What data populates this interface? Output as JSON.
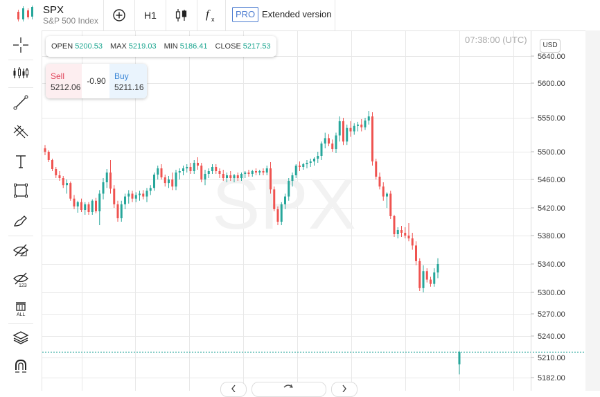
{
  "header": {
    "symbol": "SPX",
    "symbol_name": "S&P 500 Index",
    "timeframe": "H1",
    "pro_label": "PRO",
    "extended_label": "Extended version"
  },
  "colors": {
    "up": "#26a69a",
    "down": "#ef5350",
    "accent": "#4a7bd0",
    "grid": "#e8e8e8",
    "current_price_line": "#26a69a"
  },
  "ohlc": {
    "open_label": "OPEN",
    "open": "5200.53",
    "max_label": "MAX",
    "max": "5219.03",
    "min_label": "MIN",
    "min": "5186.41",
    "close_label": "CLOSE",
    "close": "5217.53"
  },
  "trade": {
    "sell_label": "Sell",
    "sell": "5212.06",
    "spread": "-0.90",
    "buy_label": "Buy",
    "buy": "5211.16"
  },
  "chart_meta": {
    "time": "07:38:00 (UTC)",
    "currency": "USD",
    "watermark": "SPX"
  },
  "toolbar_icons": [
    "plus-circle-icon",
    "candles-icon",
    "function-icon"
  ],
  "left_tools": [
    "crosshair-icon",
    "indicators-icon",
    "trend-line-icon",
    "fib-icon",
    "text-icon",
    "rectangle-icon",
    "brush-icon",
    "hide-drawings-icon",
    "hide-labels-icon",
    "delete-all-icon",
    "layers-icon",
    "magnet-icon"
  ],
  "chart_data": {
    "type": "candlestick",
    "title": "SPX",
    "y_ticks": [
      5640,
      5600,
      5550,
      5500,
      5460,
      5420,
      5380,
      5340,
      5300,
      5270,
      5240,
      5210,
      5182
    ],
    "y_tick_labels": [
      "5640.00",
      "5600.00",
      "5550.00",
      "5500.00",
      "5460.00",
      "5420.00",
      "5380.00",
      "5340.00",
      "5300.00",
      "5270.00",
      "5240.00",
      "5210.00",
      "5182.00"
    ],
    "current_price": 5217.53,
    "candles": [
      {
        "o": 5505,
        "h": 5510,
        "l": 5495,
        "c": 5500
      },
      {
        "o": 5500,
        "h": 5502,
        "l": 5485,
        "c": 5488
      },
      {
        "o": 5488,
        "h": 5490,
        "l": 5472,
        "c": 5475
      },
      {
        "o": 5475,
        "h": 5478,
        "l": 5462,
        "c": 5466
      },
      {
        "o": 5466,
        "h": 5472,
        "l": 5458,
        "c": 5462
      },
      {
        "o": 5462,
        "h": 5465,
        "l": 5448,
        "c": 5452
      },
      {
        "o": 5452,
        "h": 5460,
        "l": 5440,
        "c": 5455
      },
      {
        "o": 5455,
        "h": 5457,
        "l": 5430,
        "c": 5433
      },
      {
        "o": 5433,
        "h": 5438,
        "l": 5418,
        "c": 5422
      },
      {
        "o": 5422,
        "h": 5430,
        "l": 5413,
        "c": 5428
      },
      {
        "o": 5428,
        "h": 5433,
        "l": 5414,
        "c": 5417
      },
      {
        "o": 5417,
        "h": 5428,
        "l": 5410,
        "c": 5425
      },
      {
        "o": 5425,
        "h": 5428,
        "l": 5410,
        "c": 5414
      },
      {
        "o": 5414,
        "h": 5432,
        "l": 5410,
        "c": 5430
      },
      {
        "o": 5430,
        "h": 5434,
        "l": 5412,
        "c": 5415
      },
      {
        "o": 5415,
        "h": 5445,
        "l": 5395,
        "c": 5440
      },
      {
        "o": 5440,
        "h": 5462,
        "l": 5432,
        "c": 5456
      },
      {
        "o": 5456,
        "h": 5475,
        "l": 5448,
        "c": 5470
      },
      {
        "o": 5470,
        "h": 5488,
        "l": 5440,
        "c": 5447
      },
      {
        "o": 5447,
        "h": 5452,
        "l": 5420,
        "c": 5425
      },
      {
        "o": 5425,
        "h": 5430,
        "l": 5400,
        "c": 5405
      },
      {
        "o": 5405,
        "h": 5430,
        "l": 5400,
        "c": 5425
      },
      {
        "o": 5425,
        "h": 5440,
        "l": 5418,
        "c": 5436
      },
      {
        "o": 5436,
        "h": 5445,
        "l": 5426,
        "c": 5440
      },
      {
        "o": 5440,
        "h": 5444,
        "l": 5428,
        "c": 5433
      },
      {
        "o": 5433,
        "h": 5442,
        "l": 5428,
        "c": 5438
      },
      {
        "o": 5438,
        "h": 5444,
        "l": 5430,
        "c": 5440
      },
      {
        "o": 5440,
        "h": 5445,
        "l": 5432,
        "c": 5436
      },
      {
        "o": 5436,
        "h": 5448,
        "l": 5428,
        "c": 5444
      },
      {
        "o": 5444,
        "h": 5452,
        "l": 5438,
        "c": 5448
      },
      {
        "o": 5448,
        "h": 5470,
        "l": 5444,
        "c": 5467
      },
      {
        "o": 5467,
        "h": 5480,
        "l": 5460,
        "c": 5476
      },
      {
        "o": 5476,
        "h": 5482,
        "l": 5460,
        "c": 5463
      },
      {
        "o": 5463,
        "h": 5467,
        "l": 5450,
        "c": 5455
      },
      {
        "o": 5455,
        "h": 5465,
        "l": 5448,
        "c": 5460
      },
      {
        "o": 5460,
        "h": 5470,
        "l": 5445,
        "c": 5450
      },
      {
        "o": 5450,
        "h": 5474,
        "l": 5445,
        "c": 5470
      },
      {
        "o": 5470,
        "h": 5476,
        "l": 5460,
        "c": 5472
      },
      {
        "o": 5472,
        "h": 5480,
        "l": 5466,
        "c": 5476
      },
      {
        "o": 5476,
        "h": 5482,
        "l": 5470,
        "c": 5478
      },
      {
        "o": 5478,
        "h": 5484,
        "l": 5468,
        "c": 5472
      },
      {
        "o": 5472,
        "h": 5488,
        "l": 5468,
        "c": 5484
      },
      {
        "o": 5484,
        "h": 5492,
        "l": 5474,
        "c": 5480
      },
      {
        "o": 5480,
        "h": 5484,
        "l": 5456,
        "c": 5460
      },
      {
        "o": 5460,
        "h": 5474,
        "l": 5452,
        "c": 5468
      },
      {
        "o": 5468,
        "h": 5476,
        "l": 5462,
        "c": 5472
      },
      {
        "o": 5472,
        "h": 5482,
        "l": 5468,
        "c": 5478
      },
      {
        "o": 5478,
        "h": 5482,
        "l": 5468,
        "c": 5472
      },
      {
        "o": 5472,
        "h": 5476,
        "l": 5462,
        "c": 5468
      },
      {
        "o": 5468,
        "h": 5474,
        "l": 5458,
        "c": 5462
      },
      {
        "o": 5462,
        "h": 5470,
        "l": 5456,
        "c": 5466
      },
      {
        "o": 5466,
        "h": 5472,
        "l": 5458,
        "c": 5462
      },
      {
        "o": 5462,
        "h": 5468,
        "l": 5456,
        "c": 5466
      },
      {
        "o": 5466,
        "h": 5470,
        "l": 5458,
        "c": 5462
      },
      {
        "o": 5462,
        "h": 5470,
        "l": 5458,
        "c": 5468
      },
      {
        "o": 5468,
        "h": 5472,
        "l": 5462,
        "c": 5470
      },
      {
        "o": 5470,
        "h": 5474,
        "l": 5464,
        "c": 5468
      },
      {
        "o": 5468,
        "h": 5474,
        "l": 5464,
        "c": 5472
      },
      {
        "o": 5472,
        "h": 5476,
        "l": 5466,
        "c": 5470
      },
      {
        "o": 5470,
        "h": 5474,
        "l": 5466,
        "c": 5472
      },
      {
        "o": 5472,
        "h": 5476,
        "l": 5466,
        "c": 5470
      },
      {
        "o": 5470,
        "h": 5480,
        "l": 5466,
        "c": 5476
      },
      {
        "o": 5476,
        "h": 5485,
        "l": 5440,
        "c": 5446
      },
      {
        "o": 5446,
        "h": 5450,
        "l": 5415,
        "c": 5418
      },
      {
        "o": 5418,
        "h": 5422,
        "l": 5395,
        "c": 5400
      },
      {
        "o": 5400,
        "h": 5428,
        "l": 5395,
        "c": 5425
      },
      {
        "o": 5425,
        "h": 5440,
        "l": 5418,
        "c": 5436
      },
      {
        "o": 5436,
        "h": 5462,
        "l": 5430,
        "c": 5458
      },
      {
        "o": 5458,
        "h": 5470,
        "l": 5450,
        "c": 5466
      },
      {
        "o": 5466,
        "h": 5482,
        "l": 5462,
        "c": 5480
      },
      {
        "o": 5480,
        "h": 5486,
        "l": 5472,
        "c": 5478
      },
      {
        "o": 5478,
        "h": 5484,
        "l": 5474,
        "c": 5482
      },
      {
        "o": 5482,
        "h": 5488,
        "l": 5476,
        "c": 5484
      },
      {
        "o": 5484,
        "h": 5490,
        "l": 5478,
        "c": 5486
      },
      {
        "o": 5486,
        "h": 5492,
        "l": 5480,
        "c": 5490
      },
      {
        "o": 5490,
        "h": 5500,
        "l": 5484,
        "c": 5494
      },
      {
        "o": 5494,
        "h": 5515,
        "l": 5488,
        "c": 5512
      },
      {
        "o": 5512,
        "h": 5528,
        "l": 5505,
        "c": 5520
      },
      {
        "o": 5520,
        "h": 5526,
        "l": 5508,
        "c": 5512
      },
      {
        "o": 5512,
        "h": 5518,
        "l": 5500,
        "c": 5504
      },
      {
        "o": 5504,
        "h": 5528,
        "l": 5498,
        "c": 5524
      },
      {
        "o": 5524,
        "h": 5552,
        "l": 5515,
        "c": 5545
      },
      {
        "o": 5545,
        "h": 5550,
        "l": 5510,
        "c": 5515
      },
      {
        "o": 5515,
        "h": 5540,
        "l": 5510,
        "c": 5535
      },
      {
        "o": 5535,
        "h": 5545,
        "l": 5522,
        "c": 5530
      },
      {
        "o": 5530,
        "h": 5542,
        "l": 5525,
        "c": 5538
      },
      {
        "o": 5538,
        "h": 5544,
        "l": 5530,
        "c": 5540
      },
      {
        "o": 5540,
        "h": 5548,
        "l": 5530,
        "c": 5536
      },
      {
        "o": 5536,
        "h": 5550,
        "l": 5532,
        "c": 5546
      },
      {
        "o": 5546,
        "h": 5560,
        "l": 5540,
        "c": 5552
      },
      {
        "o": 5552,
        "h": 5558,
        "l": 5480,
        "c": 5486
      },
      {
        "o": 5486,
        "h": 5490,
        "l": 5460,
        "c": 5464
      },
      {
        "o": 5464,
        "h": 5470,
        "l": 5446,
        "c": 5450
      },
      {
        "o": 5450,
        "h": 5456,
        "l": 5430,
        "c": 5436
      },
      {
        "o": 5436,
        "h": 5442,
        "l": 5420,
        "c": 5440
      },
      {
        "o": 5440,
        "h": 5444,
        "l": 5404,
        "c": 5408
      },
      {
        "o": 5408,
        "h": 5410,
        "l": 5378,
        "c": 5382
      },
      {
        "o": 5382,
        "h": 5392,
        "l": 5376,
        "c": 5388
      },
      {
        "o": 5388,
        "h": 5394,
        "l": 5378,
        "c": 5384
      },
      {
        "o": 5384,
        "h": 5392,
        "l": 5376,
        "c": 5380
      },
      {
        "o": 5380,
        "h": 5398,
        "l": 5372,
        "c": 5376
      },
      {
        "o": 5376,
        "h": 5384,
        "l": 5360,
        "c": 5366
      },
      {
        "o": 5366,
        "h": 5372,
        "l": 5338,
        "c": 5344
      },
      {
        "o": 5344,
        "h": 5348,
        "l": 5302,
        "c": 5306
      },
      {
        "o": 5306,
        "h": 5338,
        "l": 5300,
        "c": 5330
      },
      {
        "o": 5330,
        "h": 5334,
        "l": 5314,
        "c": 5318
      },
      {
        "o": 5318,
        "h": 5322,
        "l": 5308,
        "c": 5312
      },
      {
        "o": 5312,
        "h": 5334,
        "l": 5308,
        "c": 5328
      },
      {
        "o": 5328,
        "h": 5348,
        "l": 5320,
        "c": 5340
      },
      {
        "o": 5200.53,
        "h": 5219.03,
        "l": 5186.41,
        "c": 5217.53
      }
    ]
  }
}
